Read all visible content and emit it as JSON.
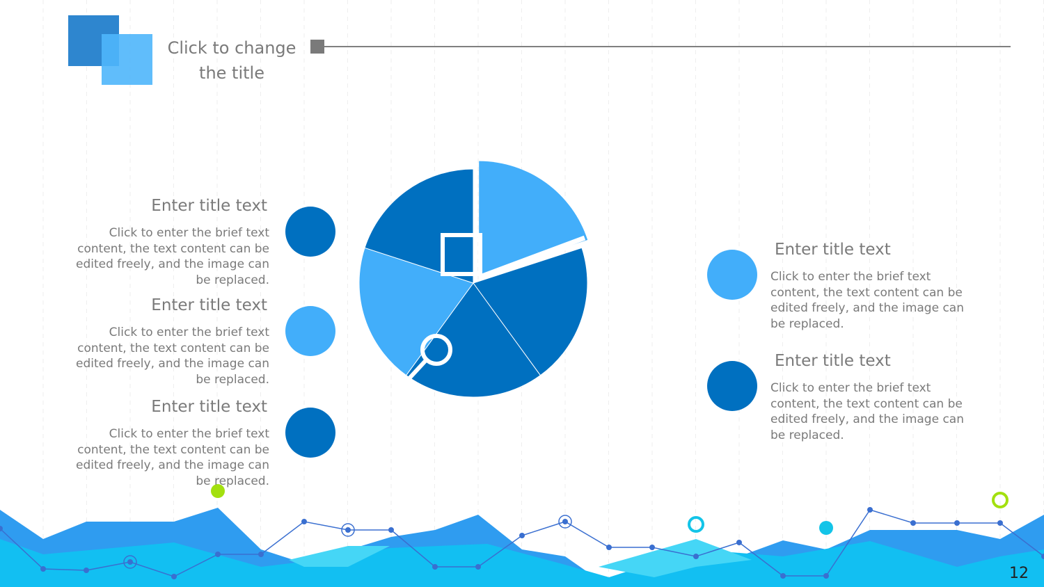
{
  "header": {
    "title_line1": "Click to change",
    "title_line2": "the title"
  },
  "left_items": [
    {
      "title": "Enter title text",
      "body": "Click to enter the brief text content, the text content can be edited freely, and the image can be replaced."
    },
    {
      "title": "Enter title text",
      "body": "Click to enter the brief text content, the text content can be edited freely, and the image can be replaced."
    },
    {
      "title": "Enter title text",
      "body": "Click to enter the brief text content, the text content can be edited freely, and the image can be replaced."
    }
  ],
  "right_items": [
    {
      "title": "Enter title text",
      "body": "Click to enter the brief text content, the text content can be edited freely, and the image can be replaced."
    },
    {
      "title": "Enter title text",
      "body": "Click to enter the brief text content, the text content can be edited freely, and the image can be replaced."
    }
  ],
  "page_number": "12"
}
